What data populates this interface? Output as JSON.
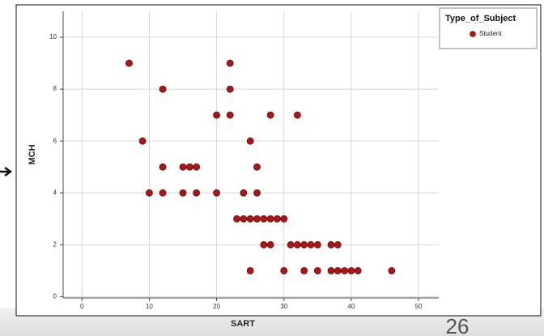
{
  "chart_data": {
    "type": "scatter",
    "x_label": "SART",
    "y_label": "MCH",
    "legend_title": "Type_of_Subject",
    "legend": "top-right",
    "grid": true,
    "x": [
      7,
      22,
      12,
      22,
      20,
      22,
      28,
      32,
      9,
      25,
      12,
      15,
      16,
      17,
      26,
      10,
      12,
      15,
      17,
      20,
      24,
      26,
      23,
      24,
      25,
      26,
      27,
      28,
      29,
      30,
      27,
      28,
      31,
      32,
      33,
      34,
      35,
      37,
      38,
      25,
      30,
      33,
      35,
      37,
      38,
      39,
      40,
      41,
      46
    ],
    "series": [
      {
        "name": "Student",
        "color": "#b21414",
        "values": [
          9,
          9,
          8,
          8,
          7,
          7,
          7,
          7,
          6,
          6,
          5,
          5,
          5,
          5,
          5,
          4,
          4,
          4,
          4,
          4,
          4,
          4,
          3,
          3,
          3,
          3,
          3,
          3,
          3,
          3,
          2,
          2,
          2,
          2,
          2,
          2,
          2,
          2,
          2,
          1,
          1,
          1,
          1,
          1,
          1,
          1,
          1,
          1,
          1
        ]
      }
    ],
    "xlim": [
      -2.8,
      53
    ],
    "xticks": [
      0,
      10,
      20,
      30,
      40,
      50
    ],
    "ylim": [
      -0.05,
      11
    ],
    "yticks": [
      0,
      2,
      4,
      6,
      8,
      10
    ]
  },
  "slide_number": "26"
}
